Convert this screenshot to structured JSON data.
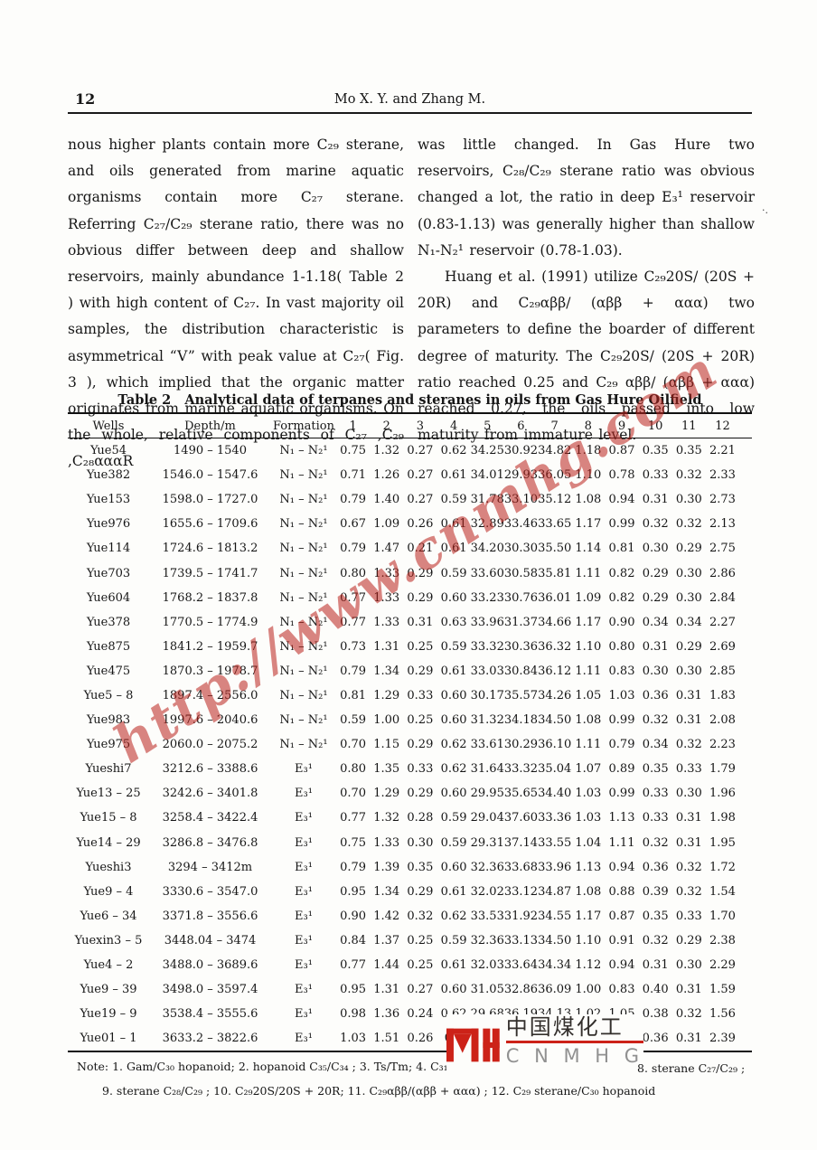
{
  "page": {
    "number": "12",
    "running_head": "Mo X. Y.  and Zhang M."
  },
  "body": {
    "left_column": "nous higher plants contain more C₂₉ sterane, and oils generated from marine aquatic organisms contain more C₂₇ sterane.  Referring C₂₇/C₂₉ sterane ratio, there was no obvious differ between deep and shallow reservoirs, mainly abundance 1-1.18( Table 2 ) with high content of C₂₇.  In vast majority oil samples, the distribution characteristic is asymmetrical “V” with peak value at C₂₇( Fig. 3 ), which implied that the organic matter originates from marine aquatic organisms.  On the whole, relative components of C₂₇ ,C₂₉ ,C₂₈αααR",
    "right_p1": "was little changed.  In Gas Hure two reservoirs, C₂₈/C₂₉ sterane ratio was obvious changed a lot, the ratio in deep E₃¹ reservoir (0.83-1.13) was generally higher than shallow N₁-N₂¹ reservoir (0.78-1.03).",
    "right_p2": "Huang et al. (1991) utilize C₂₉20S/ (20S + 20R) and C₂₉αββ/ (αββ + ααα) two parameters to define the boarder of different degree of maturity.  The C₂₉20S/ (20S + 20R) ratio reached 0.25 and C₂₉ αββ/ (αββ + ααα) reached 0.27, the oils passed into low maturity from immature level."
  },
  "table": {
    "title": "Table 2   Analytical data of terpanes and steranes in oils from Gas Hure Oilfield",
    "columns": [
      "Wells",
      "Depth/m",
      "Formation",
      "1",
      "2",
      "3",
      "4",
      "5",
      "6",
      "7",
      "8",
      "9",
      "10",
      "11",
      "12"
    ],
    "rows": [
      {
        "well": "Yue54",
        "depth": "1490 – 1540",
        "formation": "N₁ – N₂¹",
        "values": [
          "0.75",
          "1.32",
          "0.27",
          "0.62",
          "34.25",
          "30.92",
          "34.82",
          "1.18",
          "0.87",
          "0.35",
          "0.35",
          "2.21"
        ]
      },
      {
        "well": "Yue382",
        "depth": "1546.0 – 1547.6",
        "formation": "N₁ – N₂¹",
        "values": [
          "0.71",
          "1.26",
          "0.27",
          "0.61",
          "34.01",
          "29.93",
          "36.05",
          "1.10",
          "0.78",
          "0.33",
          "0.32",
          "2.33"
        ]
      },
      {
        "well": "Yue153",
        "depth": "1598.0 – 1727.0",
        "formation": "N₁ – N₂¹",
        "values": [
          "0.79",
          "1.40",
          "0.27",
          "0.59",
          "31.78",
          "33.10",
          "35.12",
          "1.08",
          "0.94",
          "0.31",
          "0.30",
          "2.73"
        ]
      },
      {
        "well": "Yue976",
        "depth": "1655.6 – 1709.6",
        "formation": "N₁ – N₂¹",
        "values": [
          "0.67",
          "1.09",
          "0.26",
          "0.61",
          "32.89",
          "33.46",
          "33.65",
          "1.17",
          "0.99",
          "0.32",
          "0.32",
          "2.13"
        ]
      },
      {
        "well": "Yue114",
        "depth": "1724.6 – 1813.2",
        "formation": "N₁ – N₂¹",
        "values": [
          "0.79",
          "1.47",
          "0.21",
          "0.61",
          "34.20",
          "30.30",
          "35.50",
          "1.14",
          "0.81",
          "0.30",
          "0.29",
          "2.75"
        ]
      },
      {
        "well": "Yue703",
        "depth": "1739.5 – 1741.7",
        "formation": "N₁ – N₂¹",
        "values": [
          "0.80",
          "1.33",
          "0.29",
          "0.59",
          "33.60",
          "30.58",
          "35.81",
          "1.11",
          "0.82",
          "0.29",
          "0.30",
          "2.86"
        ]
      },
      {
        "well": "Yue604",
        "depth": "1768.2 – 1837.8",
        "formation": "N₁ – N₂¹",
        "values": [
          "0.77",
          "1.33",
          "0.29",
          "0.60",
          "33.23",
          "30.76",
          "36.01",
          "1.09",
          "0.82",
          "0.29",
          "0.30",
          "2.84"
        ]
      },
      {
        "well": "Yue378",
        "depth": "1770.5 – 1774.9",
        "formation": "N₁ – N₂¹",
        "values": [
          "0.77",
          "1.33",
          "0.31",
          "0.63",
          "33.96",
          "31.37",
          "34.66",
          "1.17",
          "0.90",
          "0.34",
          "0.34",
          "2.27"
        ]
      },
      {
        "well": "Yue875",
        "depth": "1841.2 – 1959.7",
        "formation": "N₁ – N₂¹",
        "values": [
          "0.73",
          "1.31",
          "0.25",
          "0.59",
          "33.32",
          "30.36",
          "36.32",
          "1.10",
          "0.80",
          "0.31",
          "0.29",
          "2.69"
        ]
      },
      {
        "well": "Yue475",
        "depth": "1870.3 – 1978.7",
        "formation": "N₁ – N₂¹",
        "values": [
          "0.79",
          "1.34",
          "0.29",
          "0.61",
          "33.03",
          "30.84",
          "36.12",
          "1.11",
          "0.83",
          "0.30",
          "0.30",
          "2.85"
        ]
      },
      {
        "well": "Yue5 – 8",
        "depth": "1897.4 – 2556.0",
        "formation": "N₁ – N₂¹",
        "values": [
          "0.81",
          "1.29",
          "0.33",
          "0.60",
          "30.17",
          "35.57",
          "34.26",
          "1.05",
          "1.03",
          "0.36",
          "0.31",
          "1.83"
        ]
      },
      {
        "well": "Yue983",
        "depth": "1997.6 – 2040.6",
        "formation": "N₁ – N₂¹",
        "values": [
          "0.59",
          "1.00",
          "0.25",
          "0.60",
          "31.32",
          "34.18",
          "34.50",
          "1.08",
          "0.99",
          "0.32",
          "0.31",
          "2.08"
        ]
      },
      {
        "well": "Yue975",
        "depth": "2060.0 – 2075.2",
        "formation": "N₁ – N₂¹",
        "values": [
          "0.70",
          "1.15",
          "0.29",
          "0.62",
          "33.61",
          "30.29",
          "36.10",
          "1.11",
          "0.79",
          "0.34",
          "0.32",
          "2.23"
        ]
      },
      {
        "well": "Yueshi7",
        "depth": "3212.6 – 3388.6",
        "formation": "E₃¹",
        "values": [
          "0.80",
          "1.35",
          "0.33",
          "0.62",
          "31.64",
          "33.32",
          "35.04",
          "1.07",
          "0.89",
          "0.35",
          "0.33",
          "1.79"
        ]
      },
      {
        "well": "Yue13 – 25",
        "depth": "3242.6 – 3401.8",
        "formation": "E₃¹",
        "values": [
          "0.70",
          "1.29",
          "0.29",
          "0.60",
          "29.95",
          "35.65",
          "34.40",
          "1.03",
          "0.99",
          "0.33",
          "0.30",
          "1.96"
        ]
      },
      {
        "well": "Yue15 – 8",
        "depth": "3258.4 – 3422.4",
        "formation": "E₃¹",
        "values": [
          "0.77",
          "1.32",
          "0.28",
          "0.59",
          "29.04",
          "37.60",
          "33.36",
          "1.03",
          "1.13",
          "0.33",
          "0.31",
          "1.98"
        ]
      },
      {
        "well": "Yue14 – 29",
        "depth": "3286.8 – 3476.8",
        "formation": "E₃¹",
        "values": [
          "0.75",
          "1.33",
          "0.30",
          "0.59",
          "29.31",
          "37.14",
          "33.55",
          "1.04",
          "1.11",
          "0.32",
          "0.31",
          "1.95"
        ]
      },
      {
        "well": "Yueshi3",
        "depth": "3294 – 3412m",
        "formation": "E₃¹",
        "values": [
          "0.79",
          "1.39",
          "0.35",
          "0.60",
          "32.36",
          "33.68",
          "33.96",
          "1.13",
          "0.94",
          "0.36",
          "0.32",
          "1.72"
        ]
      },
      {
        "well": "Yue9 – 4",
        "depth": "3330.6 – 3547.0",
        "formation": "E₃¹",
        "values": [
          "0.95",
          "1.34",
          "0.29",
          "0.61",
          "32.02",
          "33.12",
          "34.87",
          "1.08",
          "0.88",
          "0.39",
          "0.32",
          "1.54"
        ]
      },
      {
        "well": "Yue6 – 34",
        "depth": "3371.8 – 3556.6",
        "formation": "E₃¹",
        "values": [
          "0.90",
          "1.42",
          "0.32",
          "0.62",
          "33.53",
          "31.92",
          "34.55",
          "1.17",
          "0.87",
          "0.35",
          "0.33",
          "1.70"
        ]
      },
      {
        "well": "Yuexin3 – 5",
        "depth": "3448.04 – 3474",
        "formation": "E₃¹",
        "values": [
          "0.84",
          "1.37",
          "0.25",
          "0.59",
          "32.36",
          "33.13",
          "34.50",
          "1.10",
          "0.91",
          "0.32",
          "0.29",
          "2.38"
        ]
      },
      {
        "well": "Yue4 – 2",
        "depth": "3488.0 – 3689.6",
        "formation": "E₃¹",
        "values": [
          "0.77",
          "1.44",
          "0.25",
          "0.61",
          "32.03",
          "33.64",
          "34.34",
          "1.12",
          "0.94",
          "0.31",
          "0.30",
          "2.29"
        ]
      },
      {
        "well": "Yue9 – 39",
        "depth": "3498.0 – 3597.4",
        "formation": "E₃¹",
        "values": [
          "0.95",
          "1.31",
          "0.27",
          "0.60",
          "31.05",
          "32.86",
          "36.09",
          "1.00",
          "0.83",
          "0.40",
          "0.31",
          "1.59"
        ]
      },
      {
        "well": "Yue19 – 9",
        "depth": "3538.4 – 3555.6",
        "formation": "E₃¹",
        "values": [
          "0.98",
          "1.36",
          "0.24",
          "0.62",
          "29.68",
          "36.19",
          "34.13",
          "1.02",
          "1.05",
          "0.38",
          "0.32",
          "1.56"
        ]
      },
      {
        "well": "Yue01 – 1",
        "depth": "3633.2 – 3822.6",
        "formation": "E₃¹",
        "values": [
          "1.03",
          "1.51",
          "0.26",
          "0.6",
          "",
          "",
          "",
          "",
          "",
          "0.36",
          "0.31",
          "2.39"
        ]
      }
    ],
    "note_line1": "Note: 1.  Gam/C₃₀ hopanoid;  2.  hopanoid C₃₅/C₃₄ ;  3.  Ts/Tm;  4.  C₃₁22S/22S +",
    "note_line1_end": "8.  sterane C₂₇/C₂₉ ;",
    "note_line2": "9.  sterane C₂₈/C₂₉ ;  10.  C₂₉20S/20S + 20R;  11.  C₂₉αββ/(αββ + ααα) ;  12.  C₂₉ sterane/C₃₀ hopanoid"
  },
  "watermark": {
    "text": "http://www.cnmhg.com",
    "color": "#bb231c"
  },
  "logo": {
    "chinese": "中国煤化工",
    "latin": "C N M H G",
    "accent_color": "#cc2218"
  }
}
